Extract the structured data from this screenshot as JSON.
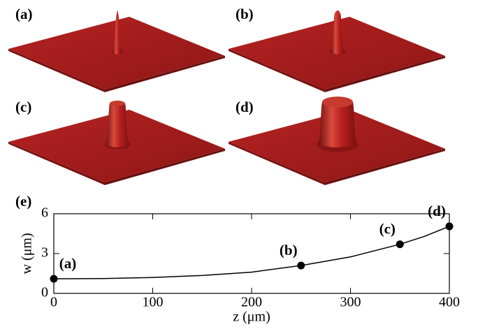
{
  "panels": [
    {
      "label": "(a)"
    },
    {
      "label": "(b)"
    },
    {
      "label": "(c)"
    },
    {
      "label": "(d)"
    }
  ],
  "chart_data": {
    "type": "line",
    "panel_label": "(e)",
    "x_label": "z (μm)",
    "y_label": "w (μm)",
    "x": [
      0,
      50,
      100,
      150,
      200,
      250,
      300,
      350,
      375,
      400
    ],
    "values": [
      1.1,
      1.12,
      1.2,
      1.35,
      1.6,
      2.1,
      2.75,
      3.7,
      4.3,
      5.05
    ],
    "color": "#000000",
    "markers": {
      "x": [
        0,
        250,
        350,
        400
      ],
      "values": [
        1.1,
        2.1,
        3.7,
        5.05
      ],
      "labels": [
        "(a)",
        "(b)",
        "(c)",
        "(d)"
      ]
    },
    "xlim": [
      0,
      400
    ],
    "ylim": [
      0,
      6
    ],
    "xticks": [
      0,
      100,
      200,
      300,
      400
    ],
    "yticks": [
      0,
      3,
      6
    ]
  }
}
